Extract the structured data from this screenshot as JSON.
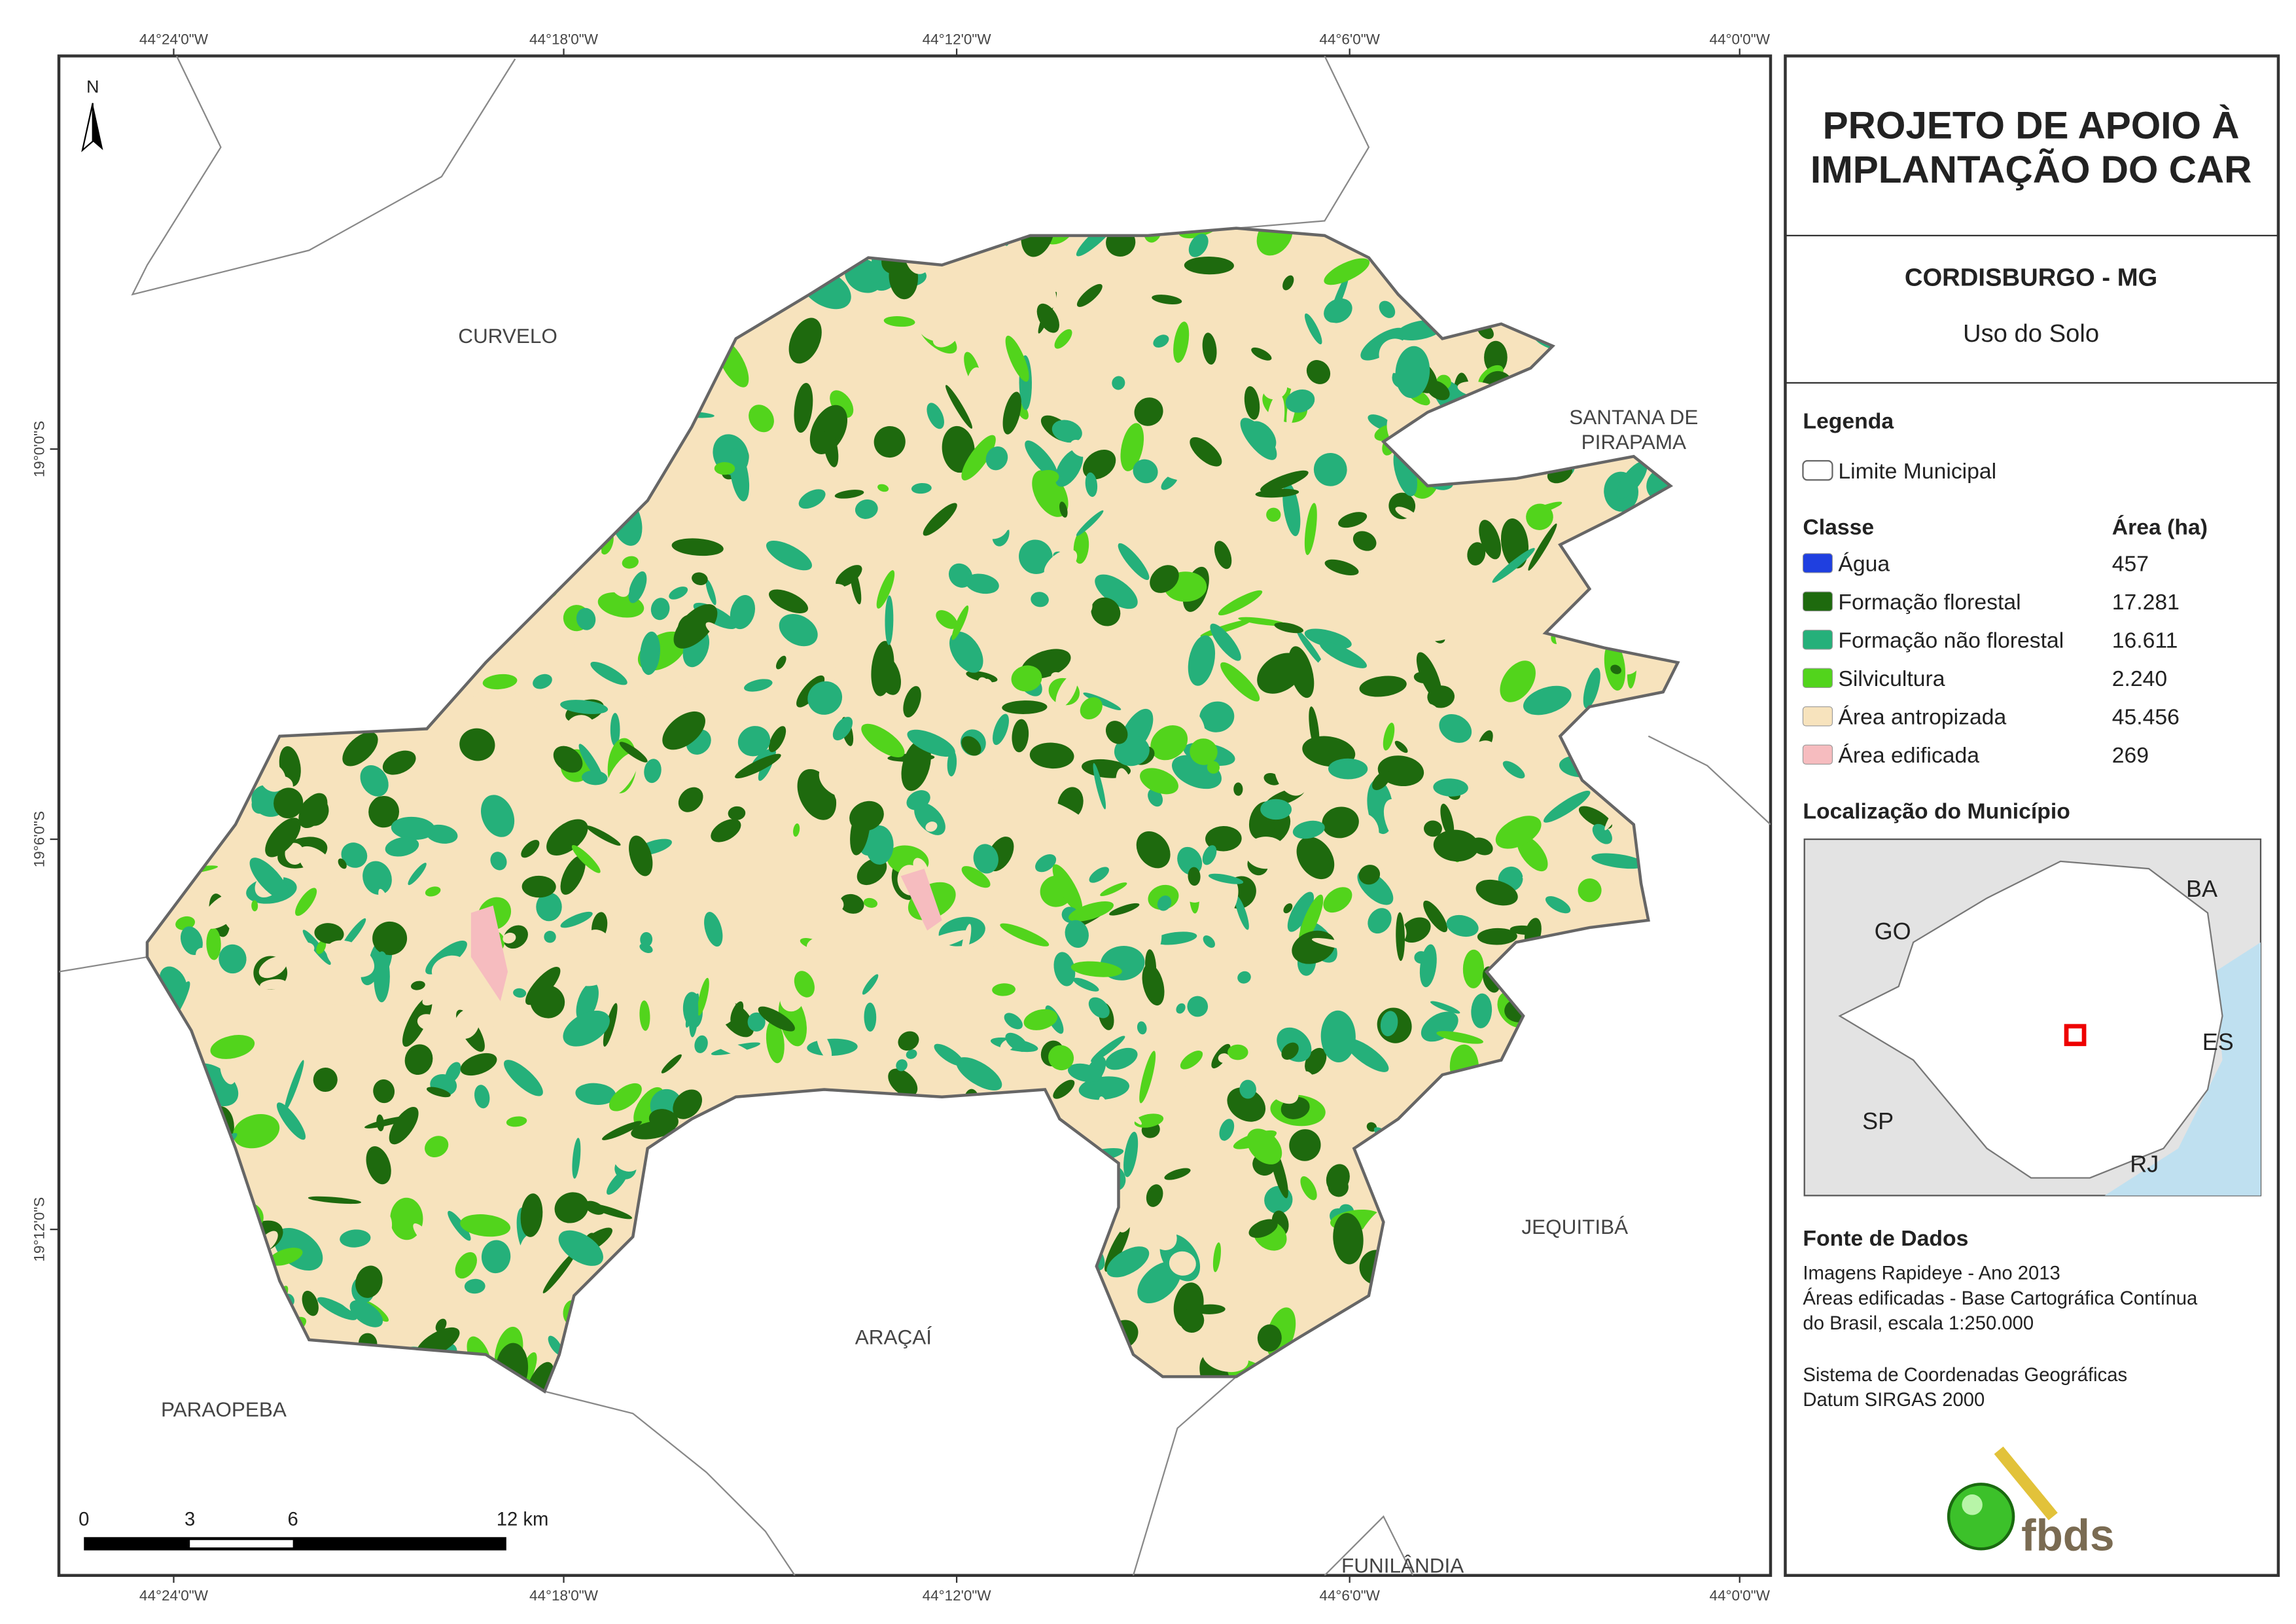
{
  "header": {
    "title_lines": [
      "PROJETO DE APOIO À",
      "IMPLANTAÇÃO DO CAR"
    ],
    "municipality": "CORDISBURGO - MG",
    "subtitle": "Uso do Solo"
  },
  "legend": {
    "title": "Legenda",
    "boundary": "Limite Municipal",
    "class_header": "Classe",
    "area_header": "Área (ha)",
    "items": [
      {
        "label": "Água",
        "area": "457",
        "color": "#1f3fe0"
      },
      {
        "label": "Formação florestal",
        "area": "17.281",
        "color": "#1e6a0e"
      },
      {
        "label": "Formação não florestal",
        "area": "16.611",
        "color": "#25b07a"
      },
      {
        "label": "Silvicultura",
        "area": "2.240",
        "color": "#52d41c"
      },
      {
        "label": "Área antropizada",
        "area": "45.456",
        "color": "#f7e3bd"
      },
      {
        "label": "Área edificada",
        "area": "269",
        "color": "#f6bcbf"
      }
    ]
  },
  "location": {
    "title": "Localização do Município",
    "states": [
      "BA",
      "GO",
      "ES",
      "SP",
      "RJ"
    ]
  },
  "sources": {
    "title": "Fonte de Dados",
    "lines": [
      "Imagens Rapideye - Ano 2013",
      "Áreas edificadas - Base Cartográfica Contínua",
      "do Brasil, escala 1:250.000",
      "Sistema de Coordenadas Geográficas",
      "Datum SIRGAS 2000"
    ],
    "logo": "fbds"
  },
  "map": {
    "north": "N",
    "lon_labels": [
      "44°24'0\"W",
      "44°18'0\"W",
      "44°12'0\"W",
      "44°6'0\"W",
      "44°0'0\"W"
    ],
    "lat_labels": [
      "19°0'0\"S",
      "19°6'0\"S",
      "19°12'0\"S"
    ],
    "places": [
      "CURVELO",
      "SANTANA DE",
      "PIRAPAMA",
      "JEQUITIBÁ",
      "ARAÇAÍ",
      "PARAOPEBA",
      "FUNILÂNDIA"
    ],
    "scale_labels": [
      "0",
      "3",
      "6",
      "12 km"
    ]
  }
}
